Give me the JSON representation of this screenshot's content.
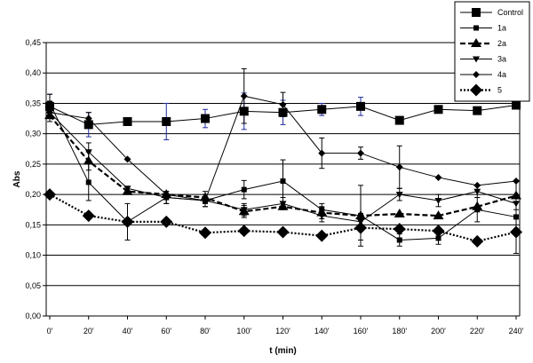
{
  "chart_data": {
    "type": "line",
    "title": "",
    "xlabel": "t (min)",
    "ylabel": "Abs",
    "x": [
      "0'",
      "20'",
      "40'",
      "60'",
      "80'",
      "100'",
      "120'",
      "140'",
      "160'",
      "180'",
      "200'",
      "220'",
      "240'"
    ],
    "y_ticks": [
      "0,00",
      "0,05",
      "0,10",
      "0,15",
      "0,20",
      "0,25",
      "0,30",
      "0,35",
      "0,40",
      "0,45"
    ],
    "ylim": [
      0,
      0.45
    ],
    "grid": true,
    "legend_position": "top-right",
    "series": [
      {
        "name": "Control",
        "line": "solid",
        "marker": "square",
        "error_color": "#1f2a9c",
        "values": [
          0.345,
          0.315,
          0.32,
          0.32,
          0.325,
          0.337,
          0.335,
          0.34,
          0.345,
          0.322,
          0.34,
          0.338,
          0.347
        ],
        "errors": [
          0.02,
          0.02,
          0.0,
          0.03,
          0.015,
          0.03,
          0.02,
          0.01,
          0.015,
          0.0,
          0.0,
          0.0,
          0.0
        ]
      },
      {
        "name": "1a",
        "line": "solid",
        "marker": "small-square",
        "error_color": "#000000",
        "values": [
          0.35,
          0.22,
          0.155,
          0.195,
          0.19,
          0.208,
          0.222,
          0.175,
          0.165,
          0.125,
          0.128,
          0.175,
          0.163
        ],
        "errors": [
          0.015,
          0.03,
          0.03,
          0.01,
          0.01,
          0.015,
          0.035,
          0.01,
          0.05,
          0.01,
          0.01,
          0.02,
          0.06
        ]
      },
      {
        "name": "2a",
        "line": "dashed",
        "marker": "triangle",
        "error_color": "#000000",
        "values": [
          0.33,
          0.255,
          0.205,
          0.2,
          0.195,
          0.172,
          0.18,
          0.17,
          0.165,
          0.168,
          0.165,
          0.18,
          0.198
        ],
        "errors": [
          0.01,
          0.015,
          0.0,
          0.0,
          0.01,
          0.01,
          0.0,
          0.01,
          0.0,
          0.0,
          0.0,
          0.0,
          0.0
        ]
      },
      {
        "name": "3a",
        "line": "solid",
        "marker": "inverted-triangle",
        "error_color": "#000000",
        "values": [
          0.335,
          0.27,
          0.21,
          0.195,
          0.19,
          0.175,
          0.185,
          0.165,
          0.155,
          0.2,
          0.19,
          0.205,
          0.185
        ],
        "errors": [
          0.01,
          0.015,
          0.0,
          0.01,
          0.01,
          0.01,
          0.01,
          0.01,
          0.0,
          0.01,
          0.01,
          0.01,
          0.01
        ]
      },
      {
        "name": "4a",
        "line": "solid",
        "marker": "diamond",
        "error_color": "#000000",
        "values": [
          0.335,
          0.325,
          0.258,
          0.2,
          0.19,
          0.362,
          0.348,
          0.268,
          0.268,
          0.245,
          0.228,
          0.215,
          0.222
        ],
        "errors": [
          0.0,
          0.01,
          0.0,
          0.0,
          0.0,
          0.045,
          0.02,
          0.025,
          0.01,
          0.035,
          0.0,
          0.0,
          0.0
        ]
      },
      {
        "name": "5",
        "line": "dotted",
        "marker": "big-diamond",
        "error_color": "#000000",
        "values": [
          0.2,
          0.165,
          0.155,
          0.155,
          0.137,
          0.14,
          0.138,
          0.132,
          0.145,
          0.143,
          0.14,
          0.123,
          0.138
        ],
        "errors": [
          0.0,
          0.0,
          0.0,
          0.0,
          0.0,
          0.0,
          0.0,
          0.0,
          0.02,
          0.0,
          0.0,
          0.0,
          0.0
        ]
      }
    ]
  }
}
